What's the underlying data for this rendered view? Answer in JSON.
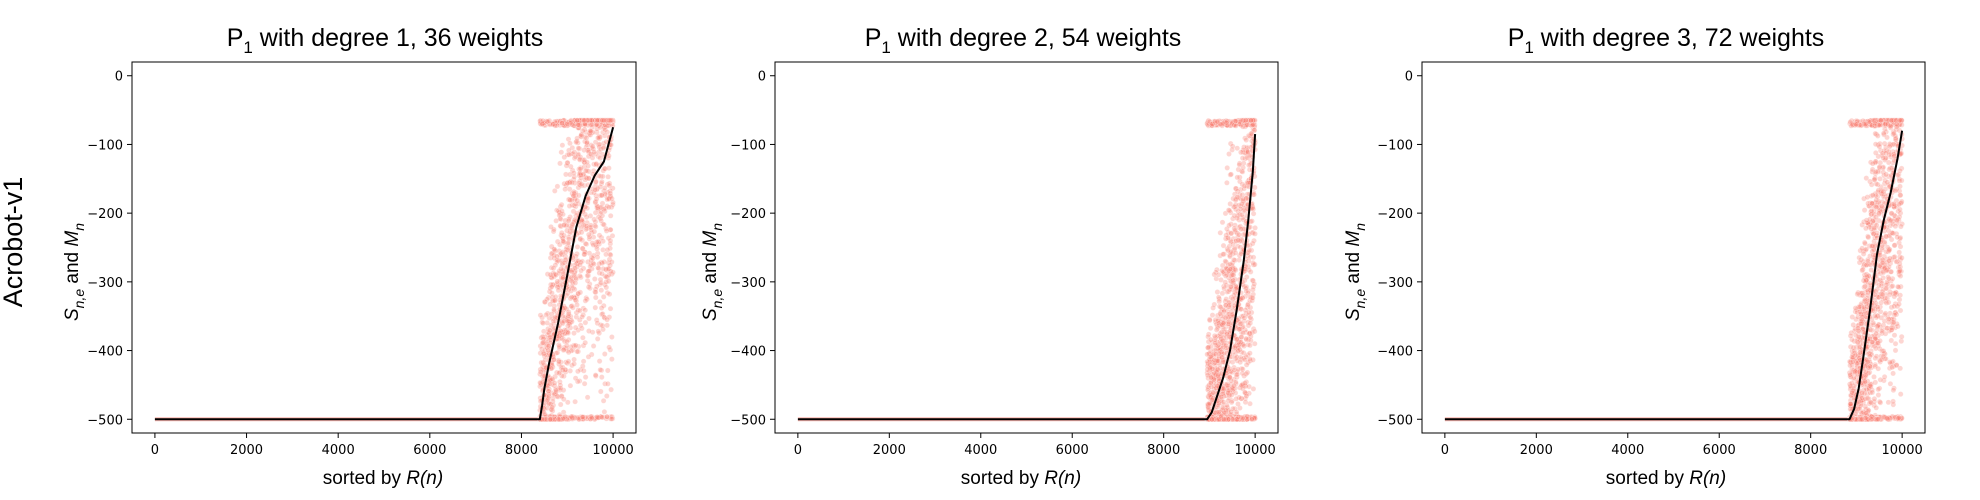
{
  "figure": {
    "row_label": "Acrobot-v1"
  },
  "chart_data": [
    {
      "type": "scatter",
      "title": {
        "main": "P",
        "sub": "1",
        "rest": " with degree 1, 36 weights"
      },
      "xlabel": {
        "prefix": "sorted by ",
        "var": "R(n)"
      },
      "ylabel": {
        "s": "S",
        "s_sub": "n,e",
        "and": " and ",
        "m": "M",
        "m_sub": "n"
      },
      "xlim": [
        -500,
        10500
      ],
      "ylim": [
        -520,
        20
      ],
      "xticks": [
        0,
        2000,
        4000,
        6000,
        8000,
        10000
      ],
      "yticks": [
        0,
        -100,
        -200,
        -300,
        -400,
        -500
      ],
      "xtick_labels": [
        "0",
        "2000",
        "4000",
        "6000",
        "8000",
        "10000"
      ],
      "ytick_labels": [
        "0",
        "−100",
        "−200",
        "−300",
        "−400",
        "−500"
      ],
      "series": [
        {
          "kind": "scatter_band",
          "color": "#fa8072",
          "x_start": 8400,
          "x_end": 10000,
          "y_floor": -500,
          "y_ceiling": -65
        },
        {
          "kind": "line",
          "color": "#000000",
          "x": [
            0,
            8400,
            8450,
            8500,
            8600,
            8700,
            8800,
            9000,
            9200,
            9400,
            9600,
            9800,
            9900,
            10000
          ],
          "y": [
            -500,
            -500,
            -480,
            -455,
            -420,
            -390,
            -360,
            -290,
            -220,
            -175,
            -145,
            -125,
            -100,
            -75
          ]
        }
      ],
      "grid": false
    },
    {
      "type": "scatter",
      "title": {
        "main": "P",
        "sub": "1",
        "rest": " with degree 2, 54 weights"
      },
      "xlabel": {
        "prefix": "sorted by ",
        "var": "R(n)"
      },
      "ylabel": {
        "s": "S",
        "s_sub": "n,e",
        "and": " and ",
        "m": "M",
        "m_sub": "n"
      },
      "xlim": [
        -500,
        10500
      ],
      "ylim": [
        -520,
        20
      ],
      "xticks": [
        0,
        2000,
        4000,
        6000,
        8000,
        10000
      ],
      "yticks": [
        0,
        -100,
        -200,
        -300,
        -400,
        -500
      ],
      "xtick_labels": [
        "0",
        "2000",
        "4000",
        "6000",
        "8000",
        "10000"
      ],
      "ytick_labels": [
        "0",
        "−100",
        "−200",
        "−300",
        "−400",
        "−500"
      ],
      "series": [
        {
          "kind": "scatter_band",
          "color": "#fa8072",
          "x_start": 8950,
          "x_end": 10000,
          "y_floor": -500,
          "y_ceiling": -65
        },
        {
          "kind": "line",
          "color": "#000000",
          "x": [
            0,
            8950,
            9050,
            9150,
            9300,
            9450,
            9600,
            9750,
            9850,
            9950,
            10000
          ],
          "y": [
            -500,
            -500,
            -490,
            -470,
            -440,
            -400,
            -340,
            -270,
            -210,
            -140,
            -85
          ]
        }
      ],
      "grid": false
    },
    {
      "type": "scatter",
      "title": {
        "main": "P",
        "sub": "1",
        "rest": " with degree 3, 72 weights"
      },
      "xlabel": {
        "prefix": "sorted by ",
        "var": "R(n)"
      },
      "ylabel": {
        "s": "S",
        "s_sub": "n,e",
        "and": " and ",
        "m": "M",
        "m_sub": "n"
      },
      "xlim": [
        -500,
        10500
      ],
      "ylim": [
        -520,
        20
      ],
      "xticks": [
        0,
        2000,
        4000,
        6000,
        8000,
        10000
      ],
      "yticks": [
        0,
        -100,
        -200,
        -300,
        -400,
        -500
      ],
      "xtick_labels": [
        "0",
        "2000",
        "4000",
        "6000",
        "8000",
        "10000"
      ],
      "ytick_labels": [
        "0",
        "−100",
        "−200",
        "−300",
        "−400",
        "−500"
      ],
      "series": [
        {
          "kind": "scatter_band",
          "color": "#fa8072",
          "x_start": 8850,
          "x_end": 10000,
          "y_floor": -500,
          "y_ceiling": -65
        },
        {
          "kind": "line",
          "color": "#000000",
          "x": [
            0,
            8850,
            8950,
            9050,
            9150,
            9300,
            9450,
            9600,
            9750,
            9900,
            10000
          ],
          "y": [
            -500,
            -500,
            -485,
            -455,
            -410,
            -340,
            -260,
            -210,
            -170,
            -120,
            -80
          ]
        }
      ],
      "grid": false
    }
  ]
}
